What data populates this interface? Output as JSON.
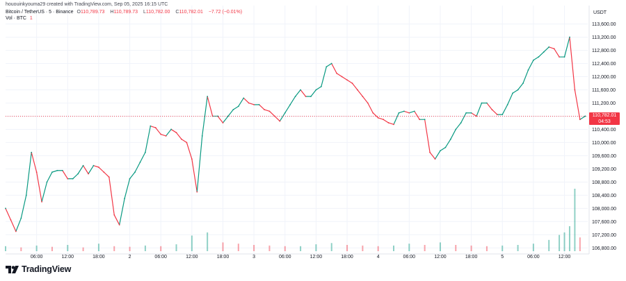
{
  "header": {
    "author_line": "hououinkyouma29 created with TradingView.com, Sep 05, 2025 16:15 UTC",
    "symbol": "Bitcoin / TetherUS · 5 · Binance",
    "open_label": "O",
    "open": "110,789.73",
    "high_label": "H",
    "high": "110,789.73",
    "low_label": "L",
    "low": "110,782.00",
    "close_label": "C",
    "close": "110,782.01",
    "change": "−7.72 (−0.01%)",
    "volume_label": "Vol · BTC",
    "volume_value": "1"
  },
  "price_tag": {
    "price": "110,782.01",
    "countdown": "04:53"
  },
  "logo": {
    "text": "TradingView"
  },
  "colors": {
    "up": "#089981",
    "down": "#f23645",
    "grid": "#f0f3fa",
    "text": "#131722"
  },
  "chart_data": {
    "type": "line",
    "currency": "USDT",
    "y_ticks": [
      "113,600.00",
      "113,200.00",
      "112,800.00",
      "112,400.00",
      "112,000.00",
      "111,600.00",
      "111,200.00",
      "110,800.00",
      "110,400.00",
      "110,000.00",
      "109,600.00",
      "109,200.00",
      "108,800.00",
      "108,400.00",
      "108,000.00",
      "107,600.00",
      "107,200.00",
      "106,800.00"
    ],
    "y_tick_values": [
      113600,
      113200,
      112800,
      112400,
      112000,
      111600,
      111200,
      110800,
      110400,
      110000,
      109600,
      109200,
      108800,
      108400,
      108000,
      107600,
      107200,
      106800
    ],
    "ylim": [
      106700,
      113950
    ],
    "x_ticks": [
      {
        "label": "06:00",
        "t": 6
      },
      {
        "label": "12:00",
        "t": 12
      },
      {
        "label": "18:00",
        "t": 18
      },
      {
        "label": "2",
        "t": 24
      },
      {
        "label": "06:00",
        "t": 30
      },
      {
        "label": "12:00",
        "t": 36
      },
      {
        "label": "18:00",
        "t": 42
      },
      {
        "label": "3",
        "t": 48
      },
      {
        "label": "06:00",
        "t": 54
      },
      {
        "label": "12:00",
        "t": 60
      },
      {
        "label": "18:00",
        "t": 66
      },
      {
        "label": "4",
        "t": 72
      },
      {
        "label": "06:00",
        "t": 78
      },
      {
        "label": "12:00",
        "t": 84
      },
      {
        "label": "18:00",
        "t": 90
      },
      {
        "label": "5",
        "t": 96
      },
      {
        "label": "06:00",
        "t": 102
      },
      {
        "label": "12:00",
        "t": 108
      }
    ],
    "series": [
      {
        "x": [
          0,
          1,
          2,
          3,
          4,
          5,
          6,
          7,
          8,
          9,
          10,
          11,
          12,
          13,
          14,
          15,
          16,
          17,
          18,
          19,
          20,
          21,
          22,
          23,
          24,
          25,
          26,
          27,
          28,
          29,
          30,
          31,
          32,
          33,
          34,
          35,
          36,
          37,
          38,
          39,
          40,
          41,
          42,
          43,
          44,
          45,
          46,
          47,
          48,
          49,
          50,
          51,
          52,
          53,
          54,
          55,
          56,
          57,
          58,
          59,
          60,
          61,
          62,
          63,
          64,
          65,
          66,
          67,
          68,
          69,
          70,
          71,
          72,
          73,
          74,
          75,
          76,
          77,
          78,
          79,
          80,
          81,
          82,
          83,
          84,
          85,
          86,
          87,
          88,
          89,
          90,
          91,
          92,
          93,
          94,
          95,
          96,
          97,
          98,
          99,
          100,
          101,
          102,
          103,
          104,
          105,
          106,
          107,
          108,
          109,
          110,
          111,
          112
        ],
        "values": [
          108000,
          107650,
          107300,
          107700,
          108400,
          109700,
          109100,
          108200,
          108800,
          109100,
          109150,
          109150,
          108900,
          108900,
          109050,
          109300,
          109050,
          109300,
          109250,
          109100,
          108950,
          107800,
          107500,
          108300,
          108900,
          109100,
          109400,
          109700,
          110500,
          110450,
          110250,
          110200,
          110400,
          110300,
          110100,
          110000,
          109500,
          108500,
          110200,
          111400,
          110800,
          110800,
          110600,
          110800,
          111000,
          111100,
          111350,
          111200,
          111150,
          111150,
          111000,
          110950,
          110800,
          110650,
          110900,
          111150,
          111400,
          111600,
          111400,
          111400,
          111600,
          111700,
          112300,
          112400,
          112100,
          112000,
          111900,
          111800,
          111600,
          111400,
          111200,
          110900,
          110750,
          110700,
          110600,
          110550,
          110900,
          110950,
          110900,
          110950,
          110700,
          110700,
          109700,
          109500,
          109750,
          109850,
          110100,
          110400,
          110600,
          110900,
          110900,
          110800,
          111200,
          111200,
          111000,
          110850,
          110850,
          111150,
          111500,
          111600,
          111800,
          112200,
          112500,
          112600,
          112750,
          112900,
          112850,
          112600,
          112600,
          113200,
          111600,
          110700,
          110800
        ]
      }
    ],
    "volume_series": [
      {
        "x": [
          0,
          3,
          6,
          9,
          12,
          15,
          18,
          21,
          24,
          27,
          30,
          33,
          36,
          39,
          42,
          45,
          48,
          51,
          54,
          57,
          60,
          63,
          66,
          69,
          72,
          75,
          78,
          81,
          84,
          87,
          90,
          93,
          96,
          99,
          102,
          105,
          107,
          108,
          109,
          110,
          111
        ],
        "values": [
          8,
          6,
          9,
          7,
          10,
          6,
          12,
          8,
          7,
          9,
          8,
          11,
          25,
          30,
          14,
          12,
          10,
          9,
          8,
          8,
          11,
          13,
          10,
          9,
          8,
          9,
          12,
          10,
          14,
          10,
          9,
          8,
          9,
          10,
          12,
          18,
          26,
          30,
          40,
          100,
          22
        ]
      }
    ]
  }
}
